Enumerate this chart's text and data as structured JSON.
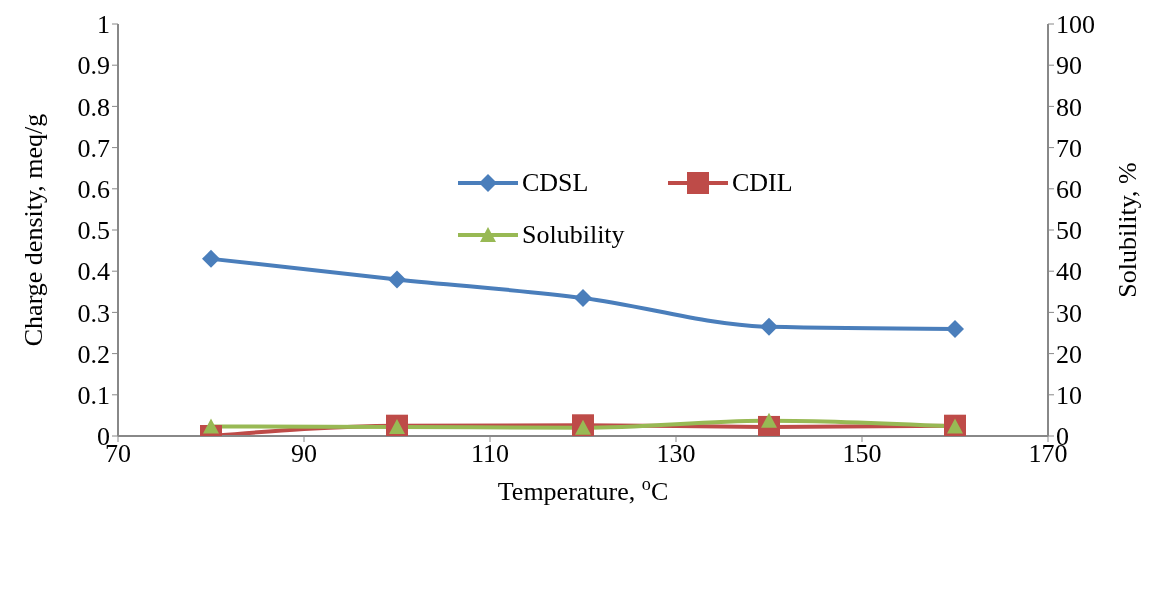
{
  "chart_data": {
    "type": "line",
    "xlabel": "Temperature, $^{o}$C",
    "ylabel": "Charge density, meq/g",
    "y2label": "Solubility, %",
    "x": [
      80,
      100,
      120,
      140,
      160
    ],
    "series": [
      {
        "name": "CDSL",
        "color": "#4a7ebb",
        "marker": "diamond",
        "values": [
          0.43,
          0.38,
          0.335,
          0.265,
          0.26
        ]
      },
      {
        "name": "CDIL",
        "color": "#be4b48",
        "marker": "square",
        "values": [
          0,
          0.025,
          0.026,
          0.022,
          0.025
        ]
      },
      {
        "name": "Solubility",
        "color": "#98b954",
        "marker": "triangle",
        "axis": "y2",
        "values": [
          2.3,
          2.2,
          2.0,
          3.7,
          2.3
        ]
      }
    ],
    "xlim": [
      70,
      170
    ],
    "xticks": [
      70,
      90,
      110,
      130,
      150,
      170
    ],
    "ylim": [
      0,
      1
    ],
    "yticks": [
      0,
      0.1,
      0.2,
      0.3,
      0.4,
      0.5,
      0.6,
      0.7,
      0.8,
      0.9,
      1
    ],
    "y2lim": [
      0,
      100
    ],
    "y2ticks": [
      0,
      10,
      20,
      30,
      40,
      50,
      60,
      70,
      80,
      90,
      100
    ],
    "legend": "top"
  }
}
